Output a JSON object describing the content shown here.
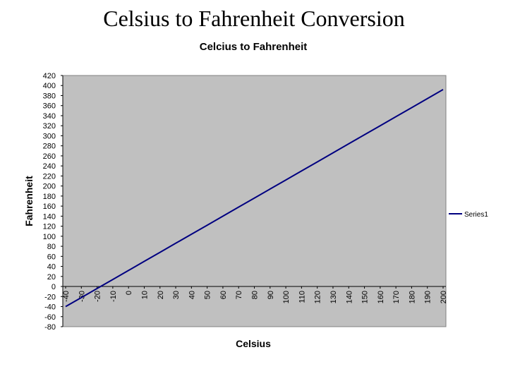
{
  "slide": {
    "title": "Celsius to Fahrenheit Conversion"
  },
  "chart_data": {
    "type": "line",
    "title": "Celcius to Fahrenheit",
    "xlabel": "Celsius",
    "ylabel": "Fahrenheit",
    "categories": [
      "-40",
      "-30",
      "-20",
      "-10",
      "0",
      "10",
      "20",
      "30",
      "40",
      "50",
      "60",
      "70",
      "80",
      "90",
      "100",
      "110",
      "120",
      "130",
      "140",
      "150",
      "160",
      "170",
      "180",
      "190",
      "200"
    ],
    "series": [
      {
        "name": "Series1",
        "color": "#000080",
        "values": [
          -40,
          -22,
          -4,
          14,
          32,
          50,
          68,
          86,
          104,
          122,
          140,
          158,
          176,
          194,
          212,
          230,
          248,
          266,
          284,
          302,
          320,
          338,
          356,
          374,
          392
        ]
      }
    ],
    "ylim": [
      -80,
      420
    ],
    "ytick_step": 20,
    "plot_background": "#c0c0c0",
    "grid": false,
    "legend_position": "right"
  }
}
